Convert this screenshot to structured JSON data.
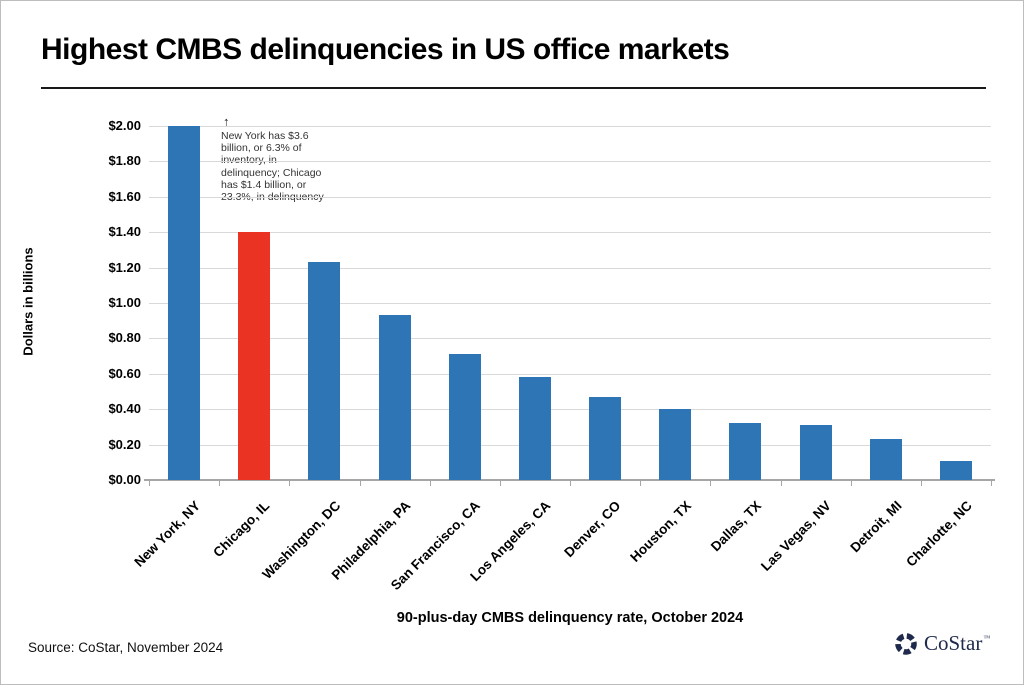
{
  "page": {
    "title": "Highest CMBS delinquencies in US office markets",
    "source": "Source: CoStar, November 2024",
    "logo": {
      "text": "CoStar",
      "tm": "™"
    }
  },
  "chart_data": {
    "type": "bar",
    "title": "Highest CMBS delinquencies in US office markets",
    "xlabel": "90-plus-day CMBS delinquency rate, October 2024",
    "ylabel": "Dollars in billions",
    "ylim": [
      0,
      2.0
    ],
    "ytick_step": 0.2,
    "ytick_labels_top_to_bottom": [
      "$2.00",
      "$1.80",
      "$1.60",
      "$1.40",
      "$1.20",
      "$1.00",
      "$0.80",
      "$0.60",
      "$0.40",
      "$0.20",
      "$0.00"
    ],
    "grid": true,
    "legend": "none",
    "categories": [
      "New York, NY",
      "Chicago, IL",
      "Washington, DC",
      "Philadelphia, PA",
      "San Francisco, CA",
      "Los Angeles, CA",
      "Denver, CO",
      "Houston, TX",
      "Dallas, TX",
      "Las Vegas, NV",
      "Detroit, MI",
      "Charlotte, NC"
    ],
    "values": [
      3.6,
      1.4,
      1.23,
      0.93,
      0.71,
      0.58,
      0.47,
      0.4,
      0.32,
      0.31,
      0.23,
      0.11
    ],
    "clip_to_ylim": true,
    "highlight_index": 1,
    "colors": {
      "default": "#2E75B6",
      "highlight": "#EA3323"
    },
    "axis_color": "#a6a6a6",
    "grid_color": "#d9d9d9",
    "annotation": {
      "arrow": "↑",
      "text": "New York has $3.6\nbillion, or 6.3% of\ninventory, in\ndelinquency; Chicago\nhas $1.4 billion, or\n23.3%, in delinquency"
    }
  }
}
